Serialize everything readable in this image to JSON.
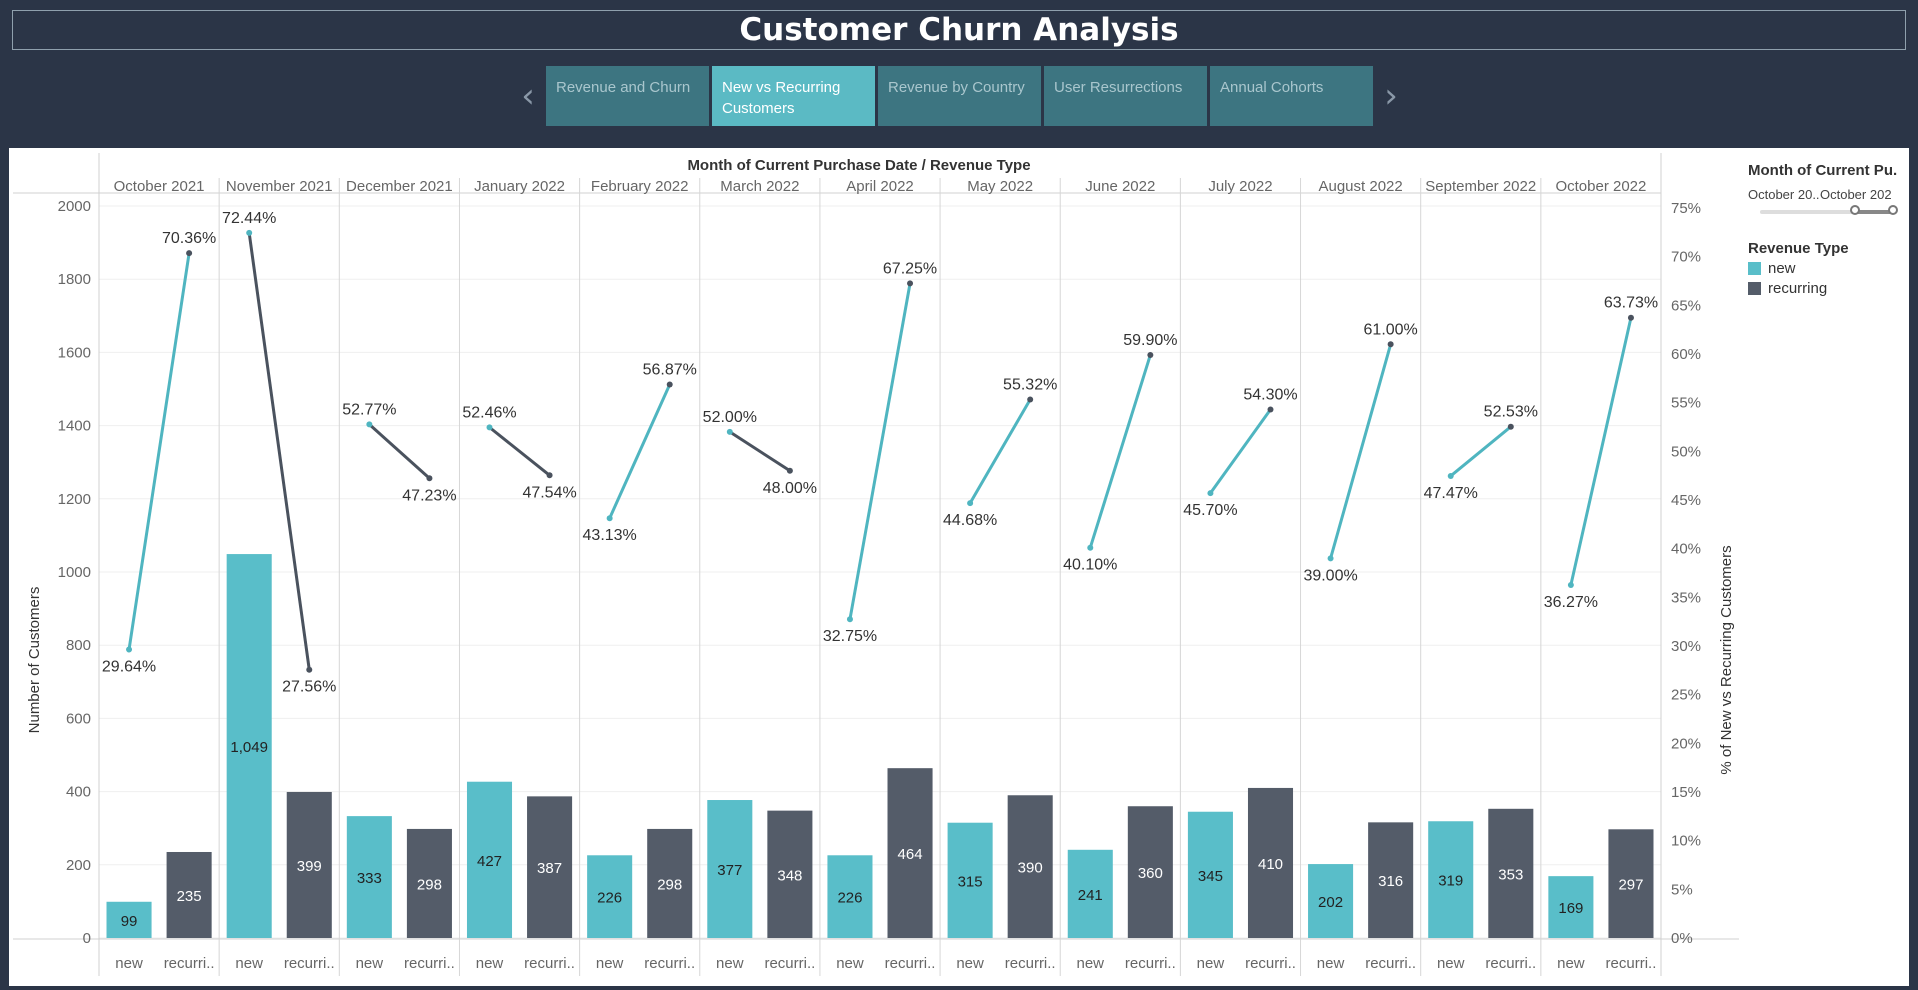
{
  "header": {
    "title": "Customer Churn Analysis"
  },
  "nav": {
    "tabs": [
      {
        "label": "Revenue and Churn",
        "active": false
      },
      {
        "label": "New vs Recurring Customers",
        "active": true
      },
      {
        "label": "Revenue by Country",
        "active": false
      },
      {
        "label": "User Resurrections",
        "active": false
      },
      {
        "label": "Annual Cohorts",
        "active": false
      }
    ],
    "prev_icon": "chevron-left-icon",
    "next_icon": "chevron-right-icon"
  },
  "filter": {
    "title": "Month of Current Pu..",
    "start_label": "October 20..",
    "end_label": "October 202"
  },
  "legend": {
    "title": "Revenue Type",
    "items": [
      {
        "label": "new",
        "color": "#59bec9"
      },
      {
        "label": "recurring",
        "color": "#545c69"
      }
    ]
  },
  "chart_data": {
    "type": "bar",
    "title": "Month of Current Purchase Date / Revenue Type",
    "ylabel": "Number of Customers",
    "y2label": "% of New vs Recurring Customers",
    "ylim": [
      0,
      2000
    ],
    "y2lim": [
      0,
      75
    ],
    "yticks": [
      "0",
      "200",
      "400",
      "600",
      "800",
      "1000",
      "1200",
      "1400",
      "1600",
      "1800",
      "2000"
    ],
    "y2ticks": [
      "0%",
      "5%",
      "10%",
      "15%",
      "20%",
      "25%",
      "30%",
      "35%",
      "40%",
      "45%",
      "50%",
      "55%",
      "60%",
      "65%",
      "70%",
      "75%"
    ],
    "categories": [
      "October 2021",
      "November 2021",
      "December 2021",
      "January 2022",
      "February 2022",
      "March 2022",
      "April 2022",
      "May 2022",
      "June 2022",
      "July 2022",
      "August 2022",
      "September 2022",
      "October 2022"
    ],
    "sub_labels": [
      "new",
      "recurri.."
    ],
    "series": [
      {
        "name": "new",
        "values": [
          99,
          1049,
          333,
          427,
          226,
          377,
          226,
          315,
          241,
          345,
          202,
          319,
          169
        ],
        "labels": [
          "99",
          "1,049",
          "333",
          "427",
          "226",
          "377",
          "226",
          "315",
          "241",
          "345",
          "202",
          "319",
          "169"
        ],
        "percent": [
          29.64,
          72.44,
          52.77,
          52.46,
          43.13,
          52.0,
          32.75,
          44.68,
          40.1,
          45.7,
          39.0,
          47.47,
          36.27
        ],
        "percent_labels": [
          "29.64%",
          "72.44%",
          "52.77%",
          "52.46%",
          "43.13%",
          "52.00%",
          "32.75%",
          "44.68%",
          "40.10%",
          "45.70%",
          "39.00%",
          "47.47%",
          "36.27%"
        ]
      },
      {
        "name": "recurring",
        "values": [
          235,
          399,
          298,
          387,
          298,
          348,
          464,
          390,
          360,
          410,
          316,
          353,
          297
        ],
        "labels": [
          "235",
          "399",
          "298",
          "387",
          "298",
          "348",
          "464",
          "390",
          "360",
          "410",
          "316",
          "353",
          "297"
        ],
        "percent": [
          70.36,
          27.56,
          47.23,
          47.54,
          56.87,
          48.0,
          67.25,
          55.32,
          59.9,
          54.3,
          61.0,
          52.53,
          63.73
        ],
        "percent_labels": [
          "70.36%",
          "27.56%",
          "47.23%",
          "47.54%",
          "56.87%",
          "48.00%",
          "67.25%",
          "55.32%",
          "59.90%",
          "54.30%",
          "61.00%",
          "52.53%",
          "63.73%"
        ]
      }
    ],
    "grid": true,
    "legend": "right"
  }
}
